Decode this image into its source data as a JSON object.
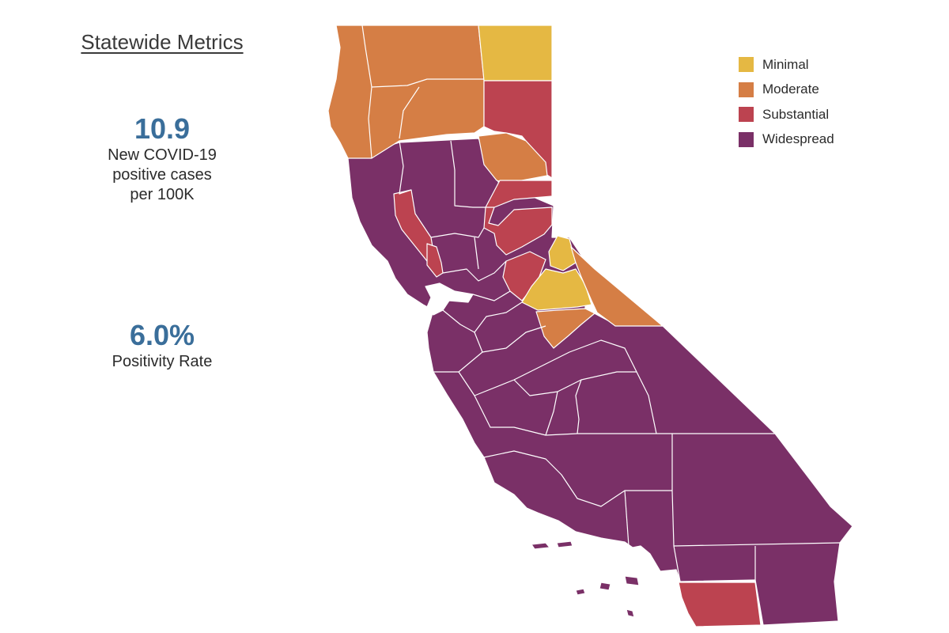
{
  "metrics": {
    "title": "Statewide Metrics",
    "cases": {
      "value": "10.9",
      "line1": "New COVID-19",
      "line2": "positive cases",
      "line3": "per 100K"
    },
    "positivity": {
      "value": "6.0%",
      "label": "Positivity Rate"
    }
  },
  "legend": {
    "items": [
      {
        "label": "Minimal",
        "color": "#e5b843"
      },
      {
        "label": "Moderate",
        "color": "#d57e45"
      },
      {
        "label": "Substantial",
        "color": "#bc4350"
      },
      {
        "label": "Widespread",
        "color": "#7a3067"
      }
    ]
  },
  "colors": {
    "minimal": "#e5b843",
    "moderate": "#d57e45",
    "substantial": "#bc4350",
    "widespread": "#7a3067"
  }
}
